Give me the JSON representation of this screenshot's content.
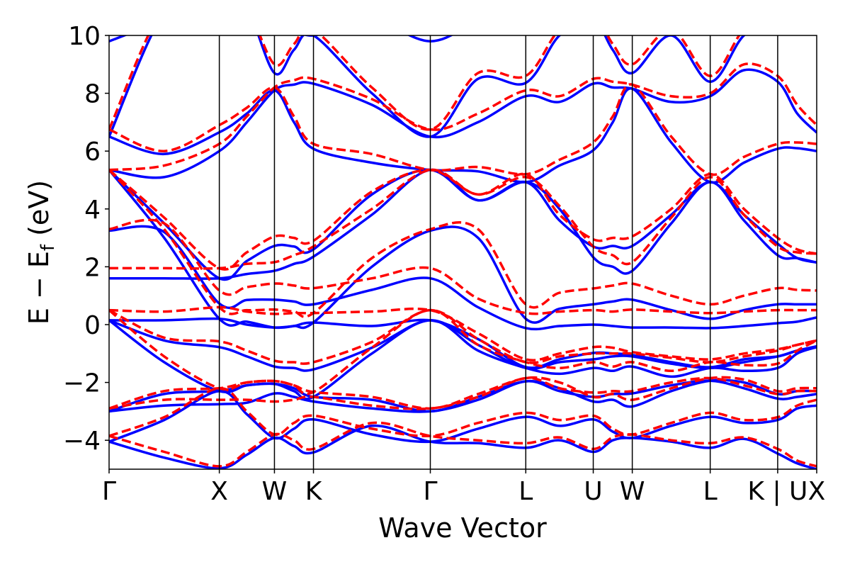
{
  "chart_data": {
    "type": "line",
    "title": "",
    "xlabel": "Wave Vector",
    "ylabel": {
      "main": "E − E",
      "sub": "f",
      "unit": " (eV)"
    },
    "ylim": [
      -5,
      10
    ],
    "yticks": [
      -4,
      -2,
      0,
      2,
      4,
      6,
      8,
      10
    ],
    "grid": false,
    "kpoints": [
      {
        "label": "Γ",
        "k": 0
      },
      {
        "label": "X",
        "k": 1.0
      },
      {
        "label": "W",
        "k": 1.5
      },
      {
        "label": "K",
        "k": 1.854
      },
      {
        "label": "Γ",
        "k": 2.914
      },
      {
        "label": "L",
        "k": 3.78
      },
      {
        "label": "U",
        "k": 4.392
      },
      {
        "label": "W",
        "k": 4.746
      },
      {
        "label": "L",
        "k": 5.453
      },
      {
        "label": "K | U",
        "k": 6.065
      },
      {
        "label": "X",
        "k": 6.419
      }
    ],
    "k": [
      0,
      0.5,
      1.0,
      1.25,
      1.5,
      1.677,
      1.854,
      2.384,
      2.914,
      3.347,
      3.78,
      4.086,
      4.392,
      4.569,
      4.746,
      5.1,
      5.453,
      5.759,
      6.065,
      6.242,
      6.419
    ],
    "series": [
      {
        "style": "solid",
        "color": "#0000ff",
        "bands": [
          [
            -4.05,
            -4.6,
            -4.97,
            -4.5,
            -3.92,
            -4.2,
            -4.42,
            -3.5,
            -4.05,
            -4.1,
            -4.26,
            -4.0,
            -4.4,
            -4.0,
            -3.92,
            -4.05,
            -4.26,
            -3.95,
            -4.46,
            -4.8,
            -5.0
          ],
          [
            -4.05,
            -3.3,
            -2.3,
            -3.1,
            -3.92,
            -3.6,
            -3.28,
            -3.8,
            -4.05,
            -3.6,
            -3.19,
            -3.5,
            -3.28,
            -3.7,
            -3.92,
            -3.5,
            -3.19,
            -3.4,
            -3.3,
            -2.9,
            -2.8
          ],
          [
            -3.0,
            -2.4,
            -2.3,
            -2.1,
            -2.05,
            -2.2,
            -2.5,
            -2.6,
            -3.0,
            -2.5,
            -1.96,
            -2.2,
            -2.66,
            -2.6,
            -2.83,
            -2.3,
            -1.94,
            -2.0,
            -2.4,
            -2.3,
            -2.3
          ],
          [
            -3.0,
            -2.8,
            -2.75,
            -2.7,
            -2.38,
            -2.5,
            -2.66,
            -2.9,
            -3.0,
            -2.6,
            -1.96,
            -2.3,
            -2.5,
            -2.4,
            -2.38,
            -2.1,
            -1.94,
            -2.2,
            -2.56,
            -2.5,
            -2.4
          ],
          [
            0.15,
            -1.3,
            -2.3,
            -2.1,
            -2.05,
            -2.3,
            -2.5,
            -1.0,
            0.15,
            -0.9,
            -1.5,
            -1.7,
            -1.5,
            -1.6,
            -1.45,
            -1.8,
            -1.5,
            -1.6,
            -1.5,
            -1.0,
            -0.78
          ],
          [
            0.15,
            -0.55,
            -0.78,
            -1.1,
            -1.45,
            -1.5,
            -1.55,
            -0.8,
            0.15,
            -0.7,
            -1.5,
            -1.3,
            -1.2,
            -1.1,
            -1.1,
            -1.35,
            -1.5,
            -1.3,
            -1.1,
            -0.9,
            -0.78
          ],
          [
            0.15,
            0.15,
            0.2,
            0.0,
            -0.1,
            -0.05,
            0.07,
            -0.05,
            0.15,
            -0.5,
            -1.47,
            -1.2,
            -0.98,
            -1.0,
            -1.05,
            -1.3,
            -1.47,
            -1.2,
            -1.1,
            -0.9,
            -0.75
          ],
          [
            1.6,
            1.6,
            1.6,
            1.75,
            1.86,
            2.1,
            2.35,
            3.8,
            5.35,
            4.3,
            4.93,
            3.6,
            2.7,
            2.72,
            2.72,
            3.8,
            4.93,
            3.8,
            2.8,
            2.3,
            2.15
          ],
          [
            3.25,
            3.2,
            0.73,
            0.85,
            0.86,
            0.8,
            0.7,
            1.2,
            1.6,
            0.6,
            -0.12,
            -0.05,
            0.0,
            -0.05,
            -0.1,
            -0.1,
            -0.12,
            -0.05,
            0.05,
            0.1,
            0.25
          ],
          [
            5.35,
            3.0,
            0.2,
            0.1,
            -0.1,
            -0.05,
            0.07,
            2.0,
            3.25,
            3.0,
            0.2,
            0.55,
            0.7,
            0.8,
            0.86,
            0.5,
            0.2,
            0.5,
            0.7,
            0.7,
            0.7
          ],
          [
            5.35,
            5.1,
            6.0,
            7.0,
            8.1,
            8.3,
            8.33,
            7.6,
            6.5,
            7.0,
            7.9,
            7.7,
            8.33,
            8.2,
            8.16,
            7.7,
            7.9,
            8.8,
            8.4,
            7.3,
            6.64
          ],
          [
            6.5,
            5.9,
            6.65,
            7.3,
            8.1,
            7.0,
            6.08,
            5.6,
            5.35,
            5.3,
            4.93,
            5.5,
            6.03,
            7.0,
            8.16,
            6.3,
            4.93,
            5.6,
            6.08,
            6.1,
            6.0
          ],
          [
            6.5,
            10.8,
            12,
            11,
            8.7,
            9.5,
            10.0,
            8.0,
            6.5,
            8.5,
            8.36,
            10.0,
            10.5,
            9.5,
            8.7,
            10.0,
            8.4,
            10.0,
            10.5,
            10.5,
            10.5
          ],
          [
            9.8,
            10.5,
            11,
            11,
            10.5,
            10.3,
            10.0,
            10.5,
            9.8,
            10.5,
            11,
            11,
            11,
            11,
            11,
            11,
            11,
            11,
            11,
            11,
            11
          ],
          [
            5.35,
            3.5,
            1.6,
            2.2,
            2.72,
            2.7,
            2.6,
            4.5,
            5.35,
            4.3,
            4.93,
            4.0,
            2.33,
            2.0,
            1.86,
            3.5,
            4.93,
            3.6,
            2.4,
            2.3,
            2.15
          ]
        ]
      },
      {
        "style": "dashed",
        "color": "#ff0000",
        "bands": [
          [
            -3.85,
            -4.4,
            -4.9,
            -4.4,
            -3.8,
            -4.0,
            -4.3,
            -3.4,
            -3.85,
            -4.0,
            -4.1,
            -3.9,
            -4.3,
            -3.9,
            -3.8,
            -4.0,
            -4.1,
            -3.9,
            -4.3,
            -4.7,
            -4.9
          ],
          [
            -3.85,
            -3.2,
            -2.2,
            -3.0,
            -3.8,
            -3.4,
            -3.15,
            -3.6,
            -3.85,
            -3.4,
            -3.05,
            -3.3,
            -3.15,
            -3.6,
            -3.8,
            -3.4,
            -3.05,
            -3.3,
            -3.2,
            -2.8,
            -2.6
          ],
          [
            -2.9,
            -2.3,
            -2.2,
            -2.0,
            -1.95,
            -2.1,
            -2.33,
            -2.5,
            -2.9,
            -2.4,
            -1.85,
            -2.0,
            -2.5,
            -2.4,
            -2.6,
            -2.2,
            -1.85,
            -1.9,
            -2.3,
            -2.2,
            -2.2
          ],
          [
            -2.9,
            -2.6,
            -2.6,
            -2.6,
            -2.66,
            -2.6,
            -2.5,
            -2.8,
            -2.9,
            -2.5,
            -1.85,
            -2.2,
            -2.35,
            -2.3,
            -2.3,
            -2.0,
            -1.85,
            -2.1,
            -2.4,
            -2.3,
            -2.3
          ],
          [
            0.5,
            -1.1,
            -2.2,
            -2.0,
            -1.95,
            -2.1,
            -2.33,
            -0.8,
            0.5,
            -0.7,
            -1.3,
            -1.5,
            -1.3,
            -1.45,
            -1.3,
            -1.6,
            -1.3,
            -1.4,
            -1.35,
            -0.9,
            -0.55
          ],
          [
            0.5,
            -0.45,
            -0.58,
            -0.9,
            -1.25,
            -1.3,
            -1.3,
            -0.6,
            0.5,
            -0.5,
            -1.3,
            -1.1,
            -1.0,
            -1.0,
            -1.0,
            -1.15,
            -1.3,
            -1.1,
            -0.9,
            -0.7,
            -0.55
          ],
          [
            0.5,
            0.45,
            0.6,
            0.45,
            0.37,
            0.4,
            0.4,
            0.45,
            0.5,
            -0.3,
            -1.2,
            -1.0,
            -0.78,
            -0.8,
            -0.95,
            -1.1,
            -1.2,
            -1.0,
            -0.85,
            -0.7,
            -0.55
          ],
          [
            1.95,
            1.95,
            1.95,
            2.1,
            2.16,
            2.4,
            2.7,
            4.0,
            5.35,
            4.5,
            5.2,
            3.8,
            2.95,
            3.0,
            3.05,
            4.0,
            5.2,
            4.0,
            3.0,
            2.6,
            2.45
          ],
          [
            3.3,
            3.5,
            1.18,
            1.3,
            1.42,
            1.35,
            1.26,
            1.6,
            1.95,
            0.9,
            0.4,
            0.45,
            0.5,
            0.45,
            0.52,
            0.45,
            0.4,
            0.45,
            0.5,
            0.5,
            0.5
          ],
          [
            5.35,
            3.3,
            0.6,
            0.5,
            0.52,
            0.45,
            0.4,
            2.3,
            3.3,
            3.3,
            0.7,
            1.1,
            1.25,
            1.35,
            1.42,
            1.0,
            0.7,
            1.0,
            1.26,
            1.2,
            1.18
          ],
          [
            5.35,
            5.5,
            6.25,
            7.2,
            8.2,
            8.45,
            8.5,
            7.8,
            6.75,
            7.3,
            8.1,
            7.9,
            8.5,
            8.4,
            8.3,
            7.9,
            8.0,
            9.0,
            8.6,
            7.6,
            6.9
          ],
          [
            6.75,
            6.0,
            6.9,
            7.5,
            8.2,
            7.2,
            6.25,
            5.9,
            5.35,
            5.45,
            5.2,
            5.7,
            6.3,
            7.2,
            8.3,
            6.5,
            5.2,
            5.8,
            6.25,
            6.3,
            6.25
          ],
          [
            6.75,
            11,
            12,
            11,
            9.0,
            9.7,
            10.2,
            8.2,
            6.75,
            8.7,
            8.6,
            10.2,
            10.7,
            9.7,
            9.0,
            10.2,
            8.6,
            10.2,
            10.7,
            10.7,
            10.7
          ],
          [
            10.2,
            10.7,
            11,
            11,
            10.7,
            10.5,
            10.2,
            10.7,
            10.2,
            10.7,
            11,
            11,
            11,
            11,
            11,
            11,
            11,
            11,
            11,
            11,
            11
          ],
          [
            5.35,
            3.7,
            1.95,
            2.5,
            3.05,
            3.0,
            2.9,
            4.6,
            5.35,
            4.5,
            5.1,
            4.1,
            2.7,
            2.4,
            2.16,
            3.7,
            5.1,
            3.8,
            2.7,
            2.5,
            2.45
          ]
        ]
      }
    ]
  }
}
